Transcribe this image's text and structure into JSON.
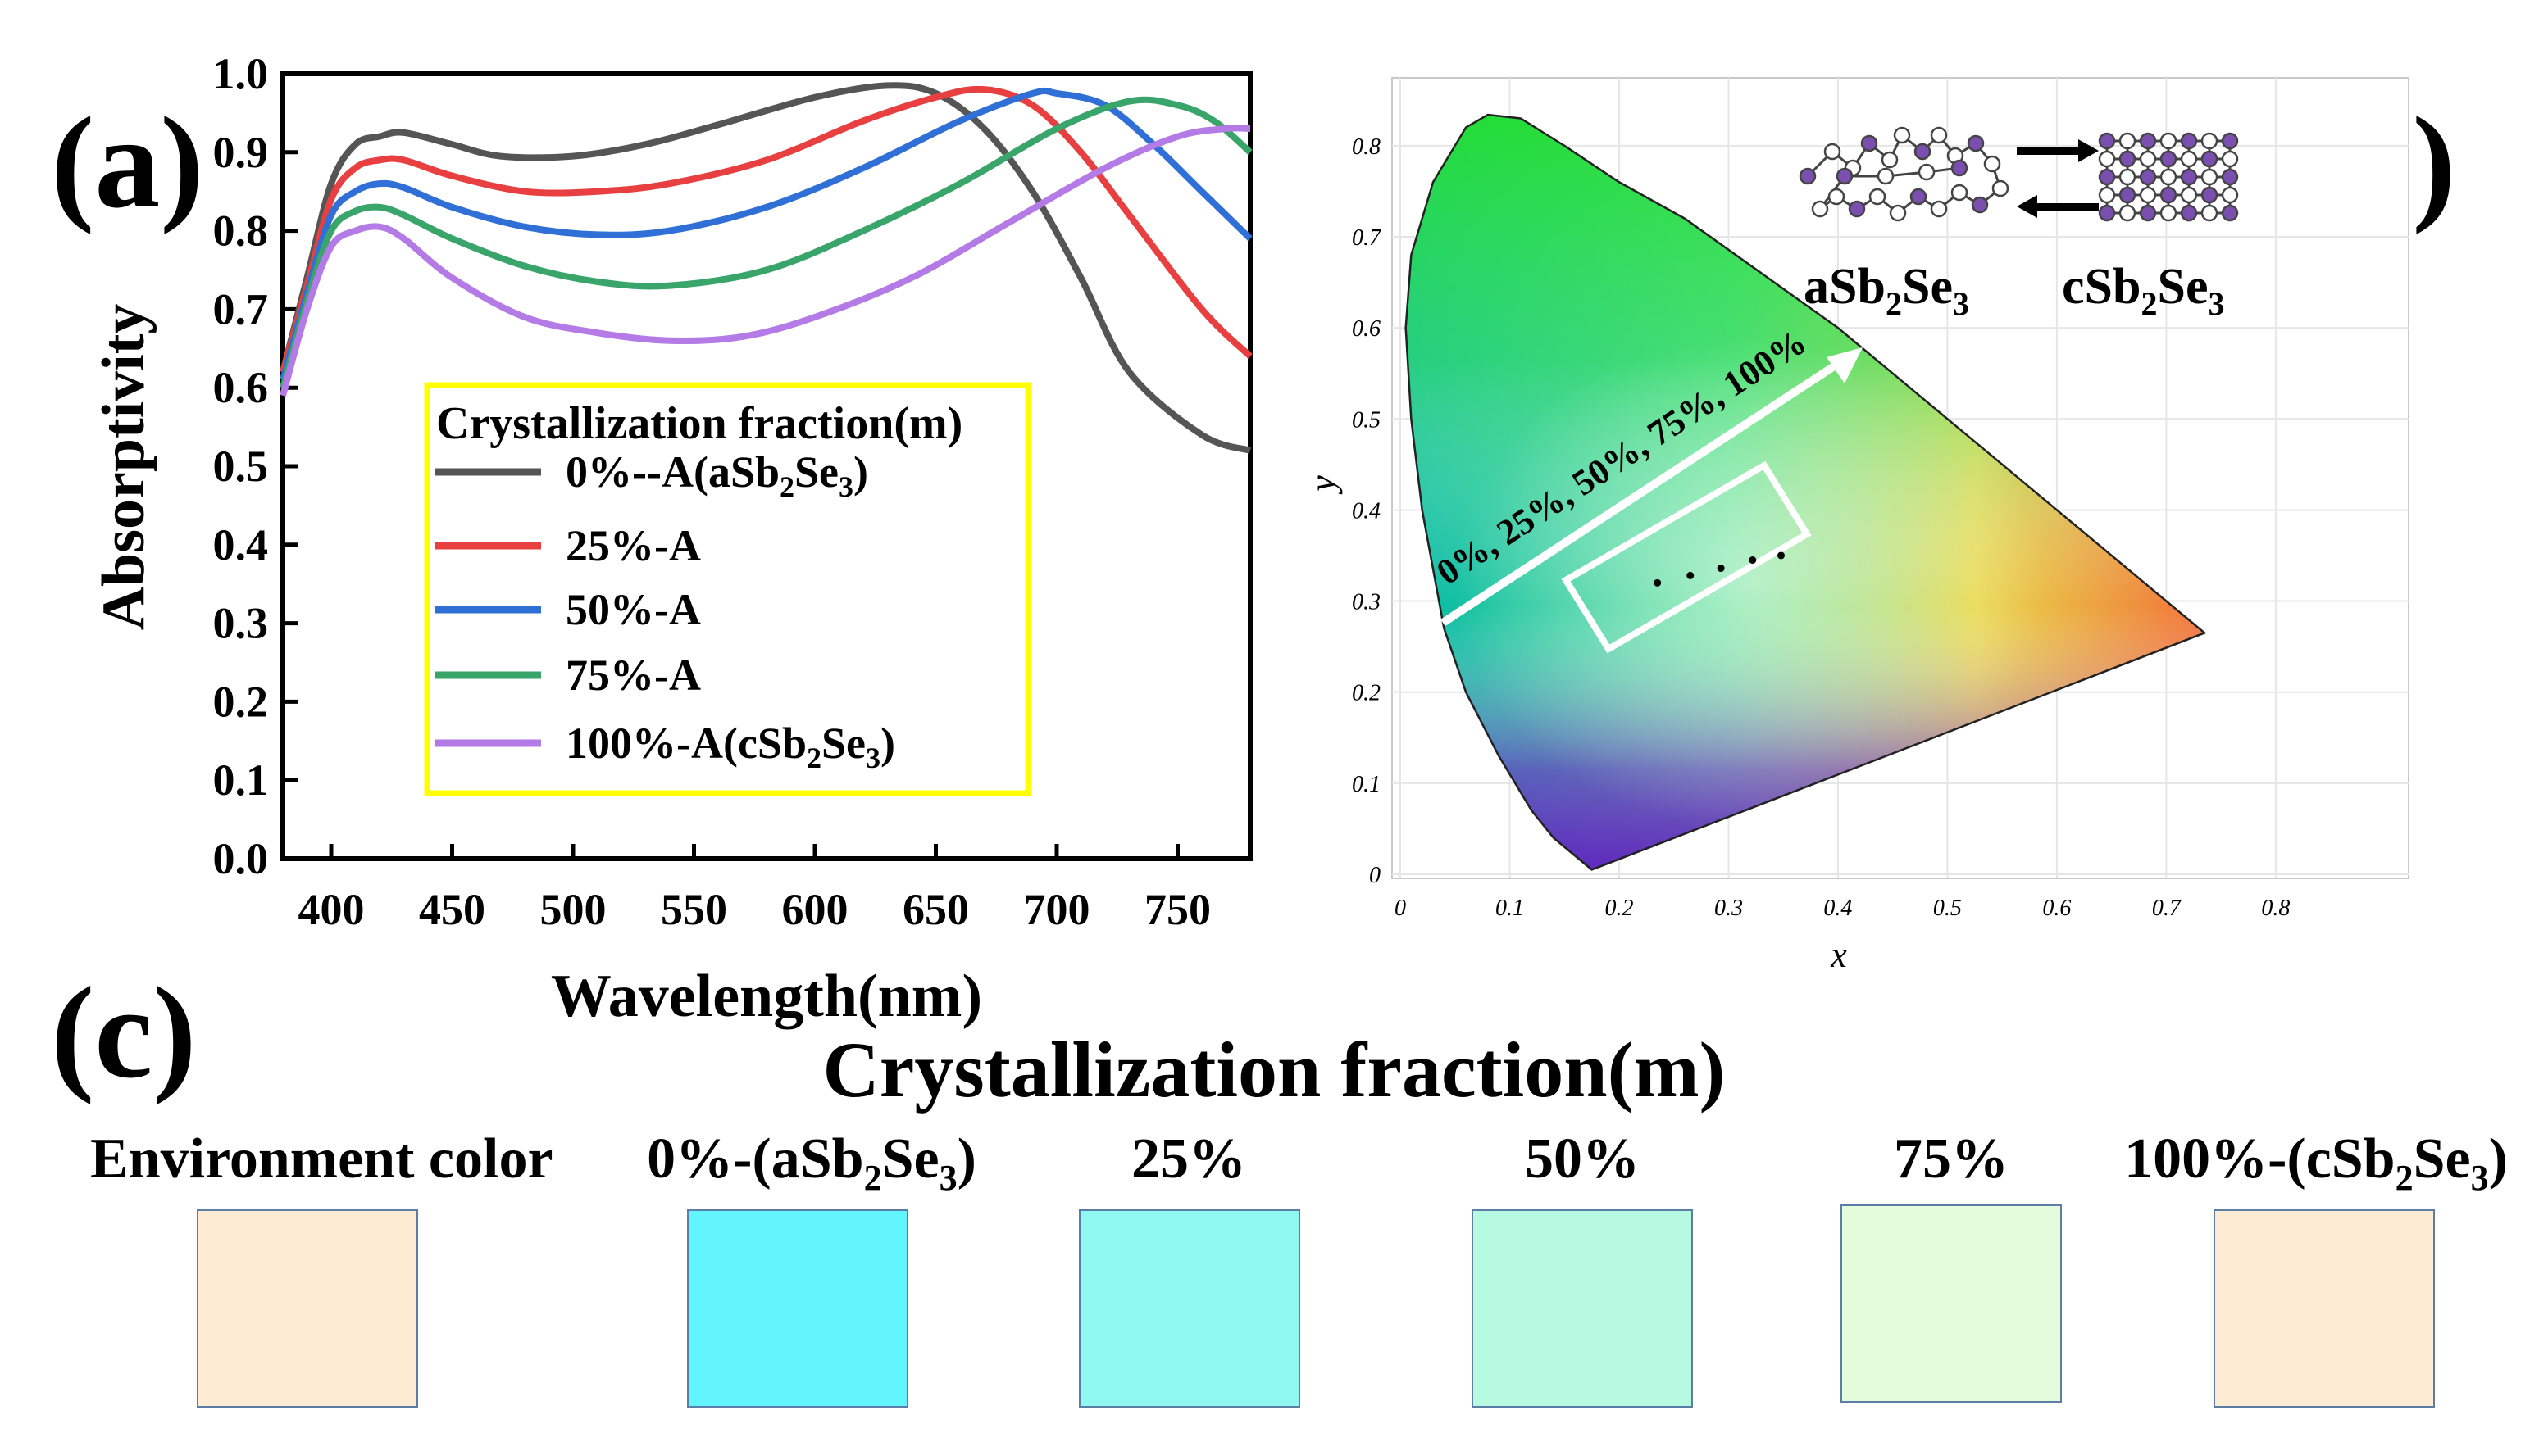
{
  "panel_labels": {
    "a": "(a)",
    "b": "(b)",
    "c": "(c)"
  },
  "chart_data": [
    {
      "type": "line",
      "panel": "(a)",
      "xlabel": "Wavelength(nm)",
      "ylabel": "Absorptivity",
      "xlim": [
        380,
        780
      ],
      "ylim": [
        0.0,
        1.0
      ],
      "xticks": [
        400,
        450,
        500,
        550,
        600,
        650,
        700,
        750
      ],
      "yticks": [
        0.0,
        0.1,
        0.2,
        0.3,
        0.4,
        0.5,
        0.6,
        0.7,
        0.8,
        0.9,
        1.0
      ],
      "legend": {
        "title": "Crystallization fraction(m)",
        "placement": "center",
        "border_color": "#ffff00"
      },
      "series": [
        {
          "name": "0%--A(aSb2Se3)",
          "label_main": "0%--A(aSb",
          "sub1": "2",
          "label_mid": "Se",
          "sub2": "3",
          "label_end": ")",
          "color": "#555555",
          "x": [
            380,
            390,
            400,
            410,
            420,
            430,
            450,
            470,
            500,
            530,
            560,
            600,
            630,
            650,
            670,
            690,
            710,
            730,
            760,
            780
          ],
          "y": [
            0.62,
            0.74,
            0.86,
            0.91,
            0.92,
            0.925,
            0.91,
            0.895,
            0.895,
            0.91,
            0.935,
            0.97,
            0.985,
            0.975,
            0.93,
            0.85,
            0.74,
            0.62,
            0.54,
            0.52
          ]
        },
        {
          "name": "25%-A",
          "label_main": "25%-A",
          "color": "#e84040",
          "x": [
            380,
            390,
            400,
            410,
            420,
            430,
            450,
            480,
            510,
            540,
            580,
            620,
            650,
            670,
            690,
            710,
            730,
            760,
            780
          ],
          "y": [
            0.62,
            0.73,
            0.84,
            0.88,
            0.89,
            0.89,
            0.87,
            0.85,
            0.85,
            0.86,
            0.89,
            0.94,
            0.97,
            0.98,
            0.96,
            0.9,
            0.82,
            0.7,
            0.64
          ]
        },
        {
          "name": "50%-A",
          "label_main": "50%-A",
          "color": "#2f6fd6",
          "x": [
            380,
            390,
            400,
            410,
            420,
            430,
            450,
            480,
            510,
            540,
            580,
            620,
            660,
            690,
            700,
            720,
            740,
            760,
            780
          ],
          "y": [
            0.61,
            0.72,
            0.82,
            0.85,
            0.86,
            0.855,
            0.83,
            0.805,
            0.795,
            0.8,
            0.83,
            0.88,
            0.94,
            0.975,
            0.975,
            0.96,
            0.91,
            0.85,
            0.79
          ]
        },
        {
          "name": "75%-A",
          "label_main": "75%-A",
          "color": "#3aa56a",
          "x": [
            380,
            390,
            400,
            410,
            420,
            430,
            450,
            480,
            510,
            540,
            580,
            620,
            660,
            700,
            730,
            750,
            765,
            780
          ],
          "y": [
            0.6,
            0.71,
            0.8,
            0.825,
            0.83,
            0.82,
            0.79,
            0.755,
            0.735,
            0.73,
            0.75,
            0.8,
            0.86,
            0.93,
            0.965,
            0.96,
            0.94,
            0.9
          ]
        },
        {
          "name": "100%-A(cSb2Se3)",
          "label_main": "100%-A(cSb",
          "sub1": "2",
          "label_mid": "Se",
          "sub2": "3",
          "label_end": ")",
          "color": "#b47ae6",
          "x": [
            380,
            390,
            400,
            410,
            420,
            430,
            450,
            480,
            510,
            540,
            570,
            600,
            640,
            680,
            720,
            750,
            770,
            780
          ],
          "y": [
            0.59,
            0.7,
            0.78,
            0.8,
            0.805,
            0.79,
            0.74,
            0.69,
            0.67,
            0.66,
            0.665,
            0.69,
            0.74,
            0.81,
            0.88,
            0.92,
            0.93,
            0.93
          ]
        }
      ]
    },
    {
      "type": "scatter",
      "panel": "(b)",
      "xlabel": "x",
      "ylabel": "y",
      "xlim": [
        0,
        0.85
      ],
      "ylim": [
        0,
        0.85
      ],
      "xticks": [
        0,
        0.1,
        0.2,
        0.3,
        0.4,
        0.5,
        0.6,
        0.7,
        0.8
      ],
      "yticks": [
        0,
        0.1,
        0.2,
        0.3,
        0.4,
        0.5,
        0.6,
        0.7,
        0.8
      ],
      "grid": true,
      "arrow_label": "0%, 25%, 50%, 75%, 100%",
      "points": [
        {
          "x": 0.235,
          "y": 0.32
        },
        {
          "x": 0.265,
          "y": 0.328
        },
        {
          "x": 0.293,
          "y": 0.336
        },
        {
          "x": 0.322,
          "y": 0.345
        },
        {
          "x": 0.348,
          "y": 0.35
        }
      ],
      "materials": {
        "amorphous": {
          "main": "aSb",
          "sub1": "2",
          "mid": "Se",
          "sub2": "3"
        },
        "crystalline": {
          "main": "cSb",
          "sub1": "2",
          "mid": "Se",
          "sub2": "3"
        }
      }
    }
  ],
  "panel_c": {
    "title": "Crystallization fraction(m)",
    "swatches": [
      {
        "label": "Environment color",
        "color": "#fdebd4"
      },
      {
        "label_main": "0%-(aSb",
        "sub1": "2",
        "label_mid": "Se",
        "sub2": "3",
        "label_end": ")",
        "color": "#62f5fd"
      },
      {
        "label": "25%",
        "color": "#8ff8f0"
      },
      {
        "label": "50%",
        "color": "#b6fae2"
      },
      {
        "label": "75%",
        "color": "#e4fbdc"
      },
      {
        "label_main": "100%-(cSb",
        "sub1": "2",
        "label_mid": "Se",
        "sub2": "3",
        "label_end": ")",
        "color": "#fdebd4"
      }
    ]
  }
}
